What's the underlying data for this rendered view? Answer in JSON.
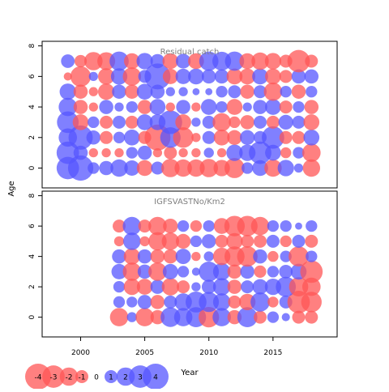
{
  "colors": {
    "positive": "#5555ff",
    "negative": "#ff5555",
    "axis": "#000000",
    "panel_title": "#808080"
  },
  "chart_data": {
    "type": "scatter",
    "subtype": "bubble-residuals",
    "xlabel": "Year",
    "ylabel": "Age",
    "xlim": [
      1997,
      2020
    ],
    "ylim": [
      -1.3,
      8.3
    ],
    "x_ticks": [
      2000,
      2005,
      2010,
      2015
    ],
    "y_ticks": [
      0,
      2,
      4,
      6,
      8
    ],
    "panels": [
      {
        "title": "Residual catch",
        "years": [
          1999,
          2000,
          2001,
          2002,
          2003,
          2004,
          2005,
          2006,
          2007,
          2008,
          2009,
          2010,
          2011,
          2012,
          2013,
          2014,
          2015,
          2016,
          2017,
          2018
        ],
        "ages": [
          0,
          1,
          2,
          3,
          4,
          5,
          6,
          7
        ],
        "values": [
          [
            3.0,
            3.8,
            0.8,
            1.2,
            1.8,
            1.4,
            -1.5,
            1.0,
            -2.0,
            -1.8,
            -1.8,
            -2.0,
            -1.6,
            -2.4,
            0.8,
            1.5,
            -1.8,
            1.6,
            0.5,
            -1.8
          ],
          [
            3.0,
            1.2,
            -0.5,
            -0.5,
            -0.5,
            0.8,
            1.2,
            -0.5,
            -1.0,
            -0.5,
            -0.5,
            0.6,
            -0.5,
            1.6,
            1.6,
            3.0,
            1.5,
            -0.7,
            0.8,
            -2.0
          ],
          [
            2.0,
            3.5,
            1.2,
            -1.0,
            0.8,
            1.5,
            -1.0,
            -4.0,
            2.5,
            -2.5,
            -0.5,
            1.0,
            -1.5,
            -1.3,
            1.3,
            1.0,
            3.0,
            -1.0,
            -1.0,
            1.5
          ],
          [
            2.8,
            -1.5,
            0.8,
            -1.0,
            1.0,
            -1.0,
            1.5,
            1.5,
            3.3,
            -1.5,
            0.5,
            1.0,
            -2.0,
            -0.8,
            -1.2,
            1.0,
            -1.0,
            1.3,
            1.0,
            -1.5
          ],
          [
            2.0,
            -1.2,
            -0.5,
            1.2,
            0.5,
            0.8,
            -1.2,
            1.5,
            -0.5,
            1.2,
            -0.5,
            1.5,
            0.8,
            -1.5,
            0.5,
            1.2,
            1.5,
            -1.0,
            0.8,
            -1.2
          ],
          [
            1.6,
            -1.2,
            -0.5,
            -1.6,
            1.2,
            -1.2,
            1.5,
            1.2,
            0.5,
            0.5,
            0.3,
            0.3,
            0.8,
            1.0,
            -1.2,
            1.0,
            -2.0,
            0.8,
            -1.2,
            0.8
          ],
          [
            -0.4,
            -2.5,
            0.5,
            -1.6,
            1.6,
            -2.0,
            1.0,
            4.0,
            -1.4,
            1.4,
            1.5,
            1.2,
            1.2,
            -1.5,
            -1.5,
            1.5,
            -1.5,
            -1.0,
            1.2,
            1.2
          ],
          [
            1.1,
            -0.9,
            -2.0,
            -1.9,
            2.2,
            -1.5,
            1.6,
            1.2,
            -1.5,
            1.3,
            -1.5,
            2.2,
            2.1,
            2.2,
            -1.5,
            -1.8,
            -1.6,
            -1.0,
            -3.0,
            -1.0
          ]
        ]
      },
      {
        "title": "IGFSVASTNo/Km2",
        "years": [
          2003,
          2004,
          2005,
          2006,
          2007,
          2008,
          2009,
          2010,
          2011,
          2012,
          2013,
          2014,
          2015,
          2016,
          2017,
          2018
        ],
        "ages": [
          0,
          1,
          2,
          3,
          4,
          5,
          6
        ],
        "values": [
          [
            -2.0,
            0.6,
            -2.0,
            -1.2,
            2.3,
            2.0,
            2.4,
            -2.5,
            2.0,
            -1.2,
            2.4,
            -1.0,
            0.8,
            0.4,
            -1.0,
            -1.0
          ],
          [
            0.8,
            0.7,
            1.2,
            -1.2,
            1.0,
            1.8,
            2.6,
            2.4,
            1.8,
            -1.0,
            -1.6,
            2.2,
            -0.7,
            1.0,
            -3.0,
            -2.5
          ],
          [
            0.8,
            -1.6,
            -1.5,
            1.2,
            -1.8,
            -1.0,
            0.5,
            1.2,
            1.8,
            -1.2,
            1.0,
            1.4,
            1.6,
            2.4,
            -2.2,
            -2.0
          ],
          [
            1.4,
            -2.0,
            1.2,
            -2.0,
            1.4,
            0.8,
            0.4,
            2.4,
            1.8,
            -1.2,
            1.2,
            -0.9,
            0.8,
            1.1,
            1.5,
            -3.0
          ],
          [
            1.2,
            -1.6,
            1.2,
            -1.2,
            -1.2,
            1.4,
            -0.5,
            0.6,
            -1.8,
            -2.4,
            -2.5,
            1.2,
            -0.7,
            0.8,
            -2.4,
            0.8
          ],
          [
            -0.6,
            1.8,
            -0.6,
            -2.0,
            -1.8,
            -1.3,
            0.8,
            1.2,
            -1.0,
            -1.6,
            -1.0,
            -1.0,
            1.0,
            -0.8,
            1.0,
            -1.0
          ],
          [
            -1.0,
            2.0,
            -1.0,
            -2.0,
            -1.3,
            0.8,
            -0.8,
            0.8,
            -1.5,
            -2.5,
            -2.5,
            -2.0,
            0.8,
            0.8,
            0.3,
            0.8
          ]
        ]
      }
    ],
    "legend": {
      "placement": "bottom-left",
      "values": [
        -4,
        -3,
        -2,
        -1,
        0,
        1,
        2,
        3,
        4
      ],
      "labels": [
        "-4",
        "-3",
        "-2",
        "-1",
        "0",
        "1",
        "2",
        "3",
        "4"
      ]
    }
  }
}
